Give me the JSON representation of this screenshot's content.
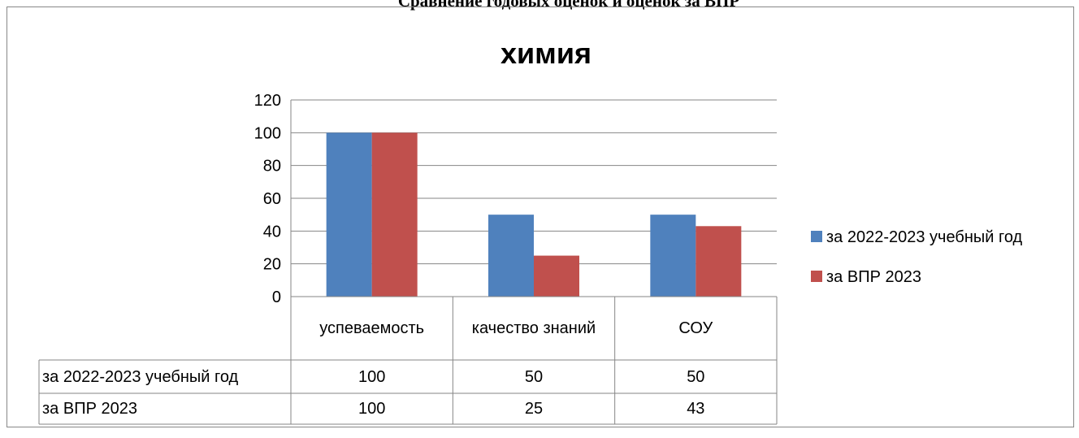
{
  "heading": "Сравнение годовых оценок и оценок за ВПР",
  "chart_data": {
    "type": "bar",
    "title": "химия",
    "categories": [
      "успеваемость",
      "качество знаний",
      "СОУ"
    ],
    "series": [
      {
        "name": "за 2022-2023 учебный год",
        "color": "#4f81bd",
        "values": [
          100,
          50,
          50
        ]
      },
      {
        "name": "за ВПР  2023",
        "color": "#c0504d",
        "values": [
          100,
          25,
          43
        ]
      }
    ],
    "ylim": [
      0,
      120
    ],
    "yticks": [
      0,
      20,
      40,
      60,
      80,
      100,
      120
    ],
    "grid": true,
    "legend": "right",
    "data_table": true
  }
}
